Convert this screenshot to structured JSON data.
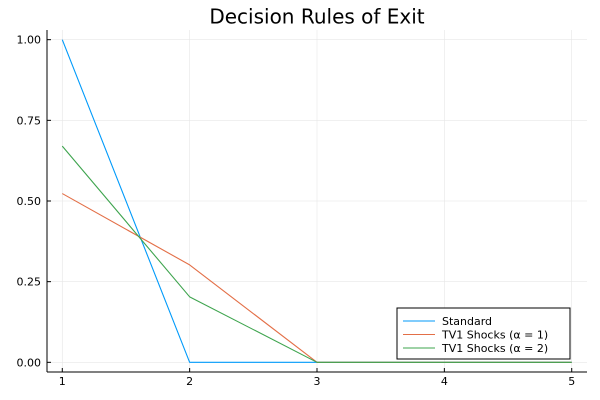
{
  "chart_data": {
    "type": "line",
    "title": "Decision Rules of Exit",
    "xlabel": "",
    "ylabel": "",
    "xlim": [
      0.88,
      5.12
    ],
    "ylim": [
      -0.03,
      1.03
    ],
    "x": [
      1,
      2,
      3,
      4,
      5
    ],
    "x_ticks": [
      1,
      2,
      3,
      4,
      5
    ],
    "x_tick_labels": [
      "1",
      "2",
      "3",
      "4",
      "5"
    ],
    "y_ticks": [
      0,
      0.25,
      0.5,
      0.75,
      1.0
    ],
    "y_tick_labels": [
      "0.00",
      "0.25",
      "0.50",
      "0.75",
      "1.00"
    ],
    "grid": true,
    "legend_position": "bottom-right",
    "series": [
      {
        "name": "Standard",
        "color": "#009AFA",
        "values": [
          1.0,
          0.0,
          0.0,
          0.0,
          0.0
        ]
      },
      {
        "name": "TV1 Shocks (α = 1)",
        "color": "#E36F47",
        "values": [
          0.523,
          0.302,
          0.0,
          0.0,
          0.0
        ]
      },
      {
        "name": "TV1 Shocks (α = 2)",
        "color": "#3EA44E",
        "values": [
          0.67,
          0.203,
          0.0,
          0.0,
          0.0
        ]
      }
    ]
  }
}
